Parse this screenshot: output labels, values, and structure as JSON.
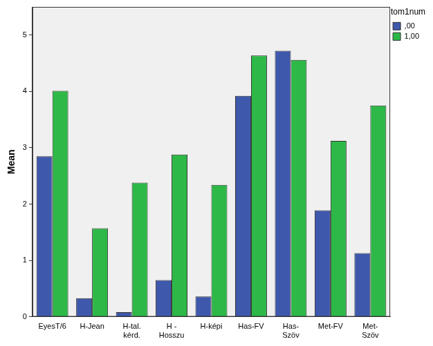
{
  "chart_data": {
    "type": "bar",
    "y_label": "Mean",
    "legend_title": "tom1num",
    "legend": "top-right",
    "grid": false,
    "categories": [
      "EyesT/6",
      "H-Jean",
      [
        "H-tal.",
        "kérd."
      ],
      [
        "H -",
        "Hosszu"
      ],
      "H-képi",
      "Has-FV",
      [
        "Has-",
        "Szöv"
      ],
      "Met-FV",
      [
        "Met-",
        "Szöv"
      ]
    ],
    "series": [
      {
        "name": ",00",
        "color": "#3e58ac",
        "values": [
          2.85,
          0.33,
          0.08,
          0.65,
          0.36,
          3.92,
          4.72,
          1.89,
          1.13
        ]
      },
      {
        "name": "1,00",
        "color": "#2eb848",
        "values": [
          4.01,
          1.57,
          2.38,
          2.88,
          2.34,
          4.64,
          4.56,
          3.12,
          3.75
        ]
      }
    ],
    "ylim": [
      0,
      5.5
    ],
    "yticks": [
      0,
      1,
      2,
      3,
      4,
      5
    ]
  }
}
